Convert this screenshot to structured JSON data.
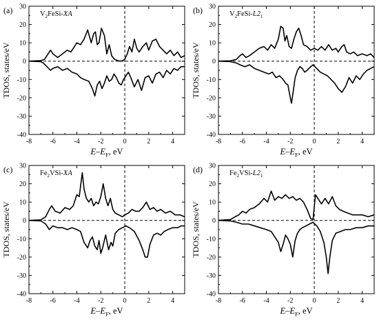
{
  "chart_data": [
    {
      "type": "line",
      "panel_label": "(a)",
      "title_parts": [
        {
          "t": "V"
        },
        {
          "t": "2",
          "sub": true
        },
        {
          "t": "FeSi-"
        },
        {
          "t": "XA",
          "italic": true
        }
      ],
      "ylabel": "TDOS, states/eV",
      "xlabel_parts": [
        {
          "t": "E",
          "italic": true
        },
        {
          "t": "–"
        },
        {
          "t": "E",
          "italic": true
        },
        {
          "t": "F",
          "sub": true
        },
        {
          "t": ", eV"
        }
      ],
      "xlim": [
        -8,
        5
      ],
      "ylim": [
        -40,
        30
      ],
      "xticks": [
        -8,
        -6,
        -4,
        -2,
        0,
        2,
        4
      ],
      "yticks": [
        -40,
        -30,
        -20,
        -10,
        0,
        10,
        20,
        30
      ],
      "grid": false,
      "fermi_line_x": 0,
      "zero_line_y": 0,
      "series": [
        {
          "x": [
            -8,
            -7,
            -6.7,
            -6.5,
            -6.2,
            -6.0,
            -5.6,
            -5.2,
            -4.8,
            -4.5,
            -4.2,
            -4.0,
            -3.7,
            -3.4,
            -3.1,
            -2.8,
            -2.6,
            -2.45,
            -2.3,
            -2.15,
            -1.95,
            -1.7,
            -1.5,
            -1.3,
            -1.1,
            -0.85,
            -0.6,
            -0.4,
            -0.2,
            0,
            0.2,
            0.4,
            0.6,
            0.8,
            1.0,
            1.2,
            1.5,
            1.8,
            2.0,
            2.3,
            2.6,
            2.9,
            3.2,
            3.5,
            3.8,
            4.1,
            4.4,
            4.7,
            5
          ],
          "y": [
            0,
            0.3,
            1,
            3,
            6,
            4,
            2,
            4,
            6,
            5,
            8,
            10,
            9,
            12,
            17,
            10,
            15,
            16,
            9,
            10,
            18,
            14,
            4,
            9,
            3,
            1,
            0.3,
            0,
            0.2,
            1,
            4,
            8,
            5,
            12,
            7,
            5,
            8,
            10,
            6,
            11,
            12,
            8,
            6,
            4,
            6,
            3,
            5,
            2,
            3
          ]
        },
        {
          "x": [
            -8,
            -7,
            -6.8,
            -6.5,
            -6.2,
            -6.0,
            -5.6,
            -5.2,
            -4.8,
            -4.4,
            -4.0,
            -3.7,
            -3.4,
            -3.0,
            -2.7,
            -2.5,
            -2.3,
            -2.1,
            -1.9,
            -1.7,
            -1.5,
            -1.3,
            -1.1,
            -0.9,
            -0.7,
            -0.5,
            -0.3,
            -0.1,
            0.1,
            0.3,
            0.5,
            0.8,
            1.1,
            1.4,
            1.7,
            2.0,
            2.3,
            2.6,
            2.9,
            3.2,
            3.5,
            3.8,
            4.1,
            4.4,
            4.7,
            5
          ],
          "y": [
            0,
            -0.3,
            -1,
            -3,
            -5,
            -4,
            -3,
            -5,
            -4,
            -6,
            -7,
            -9,
            -10,
            -11,
            -15,
            -19,
            -13,
            -11,
            -15,
            -12,
            -8,
            -11,
            -10,
            -7,
            -9,
            -12,
            -13,
            -10,
            -8,
            -6,
            -9,
            -14,
            -10,
            -16,
            -9,
            -8,
            -12,
            -7,
            -6,
            -9,
            -5,
            -7,
            -4,
            -5,
            -3,
            -3
          ]
        }
      ]
    },
    {
      "type": "line",
      "panel_label": "(b)",
      "title_parts": [
        {
          "t": "V"
        },
        {
          "t": "2",
          "sub": true
        },
        {
          "t": "FeSi-"
        },
        {
          "t": "L2",
          "italic": true
        },
        {
          "t": "1",
          "sub": true
        }
      ],
      "ylabel": "TDOS, states/eV",
      "xlabel_parts": [
        {
          "t": "E",
          "italic": true
        },
        {
          "t": "–"
        },
        {
          "t": "E",
          "italic": true
        },
        {
          "t": "F",
          "sub": true
        },
        {
          "t": ", eV"
        }
      ],
      "xlim": [
        -8,
        5
      ],
      "ylim": [
        -40,
        30
      ],
      "xticks": [
        -8,
        -6,
        -4,
        -2,
        0,
        2,
        4
      ],
      "yticks": [
        -40,
        -30,
        -20,
        -10,
        0,
        10,
        20,
        30
      ],
      "grid": false,
      "fermi_line_x": 0,
      "zero_line_y": 0,
      "series": [
        {
          "x": [
            -8,
            -7,
            -6.5,
            -6.2,
            -6.0,
            -5.7,
            -5.4,
            -5.0,
            -4.6,
            -4.2,
            -3.9,
            -3.6,
            -3.3,
            -3.0,
            -2.8,
            -2.6,
            -2.45,
            -2.3,
            -2.1,
            -1.9,
            -1.7,
            -1.5,
            -1.3,
            -1.1,
            -0.9,
            -0.6,
            -0.3,
            0,
            0.3,
            0.6,
            0.9,
            1.2,
            1.5,
            1.8,
            2.0,
            2.3,
            2.5,
            2.7,
            3.0,
            3.3,
            3.6,
            4.0,
            4.4,
            4.7,
            5
          ],
          "y": [
            0,
            0.2,
            1,
            3,
            4,
            2,
            3,
            5,
            7,
            8,
            6,
            9,
            7,
            12,
            19,
            18,
            11,
            14,
            8,
            7,
            12,
            16,
            18,
            14,
            9,
            8,
            6,
            7,
            6,
            8,
            6,
            9,
            6,
            7,
            5,
            8,
            9,
            5,
            4,
            5,
            3,
            4,
            3,
            4,
            2
          ]
        },
        {
          "x": [
            -8,
            -7,
            -6.5,
            -6.2,
            -5.8,
            -5.4,
            -5.0,
            -4.6,
            -4.2,
            -3.8,
            -3.5,
            -3.2,
            -2.9,
            -2.6,
            -2.4,
            -2.2,
            -2.0,
            -1.9,
            -1.75,
            -1.6,
            -1.4,
            -1.2,
            -1.0,
            -0.8,
            -0.6,
            -0.3,
            -0.1,
            0.2,
            0.5,
            0.8,
            1.1,
            1.4,
            1.7,
            2.0,
            2.3,
            2.6,
            2.9,
            3.2,
            3.5,
            3.8,
            4.1,
            4.4,
            4.7,
            5
          ],
          "y": [
            0,
            -0.3,
            -1,
            -2,
            -3,
            -2,
            -4,
            -5,
            -6,
            -7,
            -6,
            -9,
            -8,
            -10,
            -12,
            -13,
            -20,
            -23,
            -16,
            -9,
            -5,
            -3,
            -4,
            -6,
            -5,
            -3,
            -2,
            -4,
            -6,
            -7,
            -8,
            -10,
            -12,
            -15,
            -17,
            -14,
            -9,
            -12,
            -8,
            -10,
            -7,
            -5,
            -4,
            -3
          ]
        }
      ]
    },
    {
      "type": "line",
      "panel_label": "(c)",
      "title_parts": [
        {
          "t": "Fe"
        },
        {
          "t": "2",
          "sub": true
        },
        {
          "t": "VSi-"
        },
        {
          "t": "XA",
          "italic": true
        }
      ],
      "ylabel": "TDOS, states/eV",
      "xlabel_parts": [
        {
          "t": "E",
          "italic": true
        },
        {
          "t": "–"
        },
        {
          "t": "E",
          "italic": true
        },
        {
          "t": "F",
          "sub": true
        },
        {
          "t": ", eV"
        }
      ],
      "xlim": [
        -8,
        5
      ],
      "ylim": [
        -40,
        30
      ],
      "xticks": [
        -8,
        -6,
        -4,
        -2,
        0,
        2,
        4
      ],
      "yticks": [
        -40,
        -30,
        -20,
        -10,
        0,
        10,
        20,
        30
      ],
      "grid": false,
      "fermi_line_x": 0,
      "zero_line_y": 0,
      "series": [
        {
          "x": [
            -8,
            -7,
            -6.6,
            -6.3,
            -6.1,
            -5.8,
            -5.4,
            -5.0,
            -4.6,
            -4.3,
            -4.0,
            -3.8,
            -3.55,
            -3.4,
            -3.2,
            -3.0,
            -2.8,
            -2.6,
            -2.4,
            -2.2,
            -2.0,
            -1.8,
            -1.6,
            -1.4,
            -1.2,
            -1.0,
            -0.8,
            -0.5,
            -0.2,
            0,
            0.3,
            0.6,
            0.9,
            1.2,
            1.5,
            1.8,
            2.1,
            2.4,
            2.7,
            3.0,
            3.4,
            3.8,
            4.2,
            4.6,
            5
          ],
          "y": [
            0,
            0.3,
            2,
            6,
            8,
            5,
            4,
            7,
            6,
            8,
            14,
            13,
            26,
            17,
            12,
            10,
            12,
            8,
            10,
            9,
            13,
            20,
            12,
            8,
            12,
            6,
            4,
            3,
            2,
            3,
            4,
            6,
            5,
            5,
            7,
            10,
            6,
            7,
            5,
            6,
            4,
            5,
            3,
            3,
            2
          ]
        },
        {
          "x": [
            -8,
            -7,
            -6.6,
            -6.3,
            -6.0,
            -5.6,
            -5.2,
            -4.8,
            -4.4,
            -4.0,
            -3.7,
            -3.4,
            -3.1,
            -2.9,
            -2.7,
            -2.5,
            -2.3,
            -2.15,
            -2.0,
            -1.85,
            -1.6,
            -1.35,
            -1.15,
            -1.0,
            -0.8,
            -0.5,
            -0.2,
            0.1,
            0.4,
            0.8,
            1.2,
            1.5,
            1.7,
            1.9,
            2.1,
            2.4,
            2.7,
            3.0,
            3.3,
            3.6,
            4.0,
            4.4,
            4.7,
            5
          ],
          "y": [
            0,
            -0.3,
            -2,
            -5,
            -3,
            -4,
            -4,
            -5,
            -4,
            -5,
            -6,
            -12,
            -15,
            -11,
            -9,
            -14,
            -16,
            -11,
            -18,
            -15,
            -8,
            -16,
            -12,
            -14,
            -7,
            -5,
            -4,
            -3,
            -4,
            -6,
            -11,
            -16,
            -20,
            -20,
            -13,
            -8,
            -7,
            -8,
            -6,
            -5,
            -4,
            -4,
            -3,
            -3
          ]
        }
      ]
    },
    {
      "type": "line",
      "panel_label": "(d)",
      "title_parts": [
        {
          "t": "Fe"
        },
        {
          "t": "2",
          "sub": true
        },
        {
          "t": "VSi-"
        },
        {
          "t": "L2",
          "italic": true
        },
        {
          "t": "1",
          "sub": true
        }
      ],
      "ylabel": "TDOS, states/eV",
      "xlabel_parts": [
        {
          "t": "E",
          "italic": true
        },
        {
          "t": "–"
        },
        {
          "t": "E",
          "italic": true
        },
        {
          "t": "F",
          "sub": true
        },
        {
          "t": ", eV"
        }
      ],
      "xlim": [
        -8,
        5
      ],
      "ylim": [
        -40,
        30
      ],
      "xticks": [
        -8,
        -6,
        -4,
        -2,
        0,
        2,
        4
      ],
      "yticks": [
        -40,
        -30,
        -20,
        -10,
        0,
        10,
        20,
        30
      ],
      "grid": false,
      "fermi_line_x": 0,
      "zero_line_y": 0,
      "series": [
        {
          "x": [
            -8,
            -7,
            -6.6,
            -6.3,
            -6.0,
            -5.7,
            -5.4,
            -5.0,
            -4.6,
            -4.2,
            -3.9,
            -3.6,
            -3.3,
            -3.0,
            -2.7,
            -2.4,
            -2.1,
            -1.8,
            -1.5,
            -1.2,
            -0.9,
            -0.6,
            -0.3,
            -0.1,
            0.1,
            0.3,
            0.6,
            0.9,
            1.2,
            1.5,
            1.8,
            2.1,
            2.4,
            2.8,
            3.2,
            3.6,
            4.0,
            4.5,
            5
          ],
          "y": [
            0,
            0.5,
            2,
            3,
            5,
            4,
            6,
            7,
            9,
            12,
            10,
            16,
            11,
            13,
            12,
            14,
            12,
            13,
            11,
            12,
            10,
            6,
            1,
            0.5,
            14,
            12,
            9,
            12,
            9,
            13,
            8,
            6,
            5,
            4,
            3,
            3,
            3,
            2,
            3
          ]
        },
        {
          "x": [
            -8,
            -7,
            -6.5,
            -6.0,
            -5.5,
            -5.0,
            -4.5,
            -4.0,
            -3.6,
            -3.3,
            -3.0,
            -2.8,
            -2.6,
            -2.4,
            -2.2,
            -2.0,
            -1.8,
            -1.6,
            -1.4,
            -1.2,
            -1.0,
            -0.7,
            -0.4,
            -0.1,
            0.2,
            0.5,
            0.8,
            1.0,
            1.15,
            1.3,
            1.5,
            1.8,
            2.2,
            2.6,
            3.0,
            3.5,
            4.0,
            4.5,
            5
          ],
          "y": [
            0,
            -0.3,
            -1,
            -2,
            -2,
            -3,
            -4,
            -5,
            -6,
            -9,
            -12,
            -17,
            -13,
            -8,
            -10,
            -13,
            -20,
            -11,
            -7,
            -5,
            -4,
            -3,
            -2,
            -1,
            -3,
            -6,
            -12,
            -20,
            -29,
            -20,
            -11,
            -7,
            -6,
            -5,
            -5,
            -4,
            -4,
            -3,
            -3
          ]
        }
      ]
    }
  ]
}
